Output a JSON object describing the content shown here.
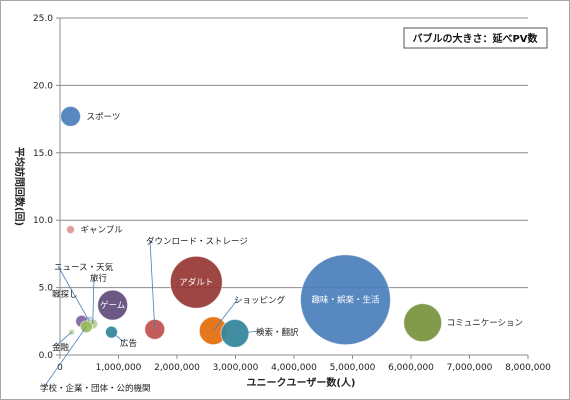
{
  "chart_data": {
    "type": "scatter",
    "bubble": true,
    "xlabel": "ユニークユーザー数(人)",
    "ylabel": "平均訪問回数(回)",
    "size_legend": "バブルの大きさ：延べPV数",
    "xlim": [
      0,
      8000000
    ],
    "ylim": [
      0,
      25
    ],
    "x_ticks": [
      "0",
      "1,000,000",
      "2,000,000",
      "3,000,000",
      "4,000,000",
      "5,000,000",
      "6,000,000",
      "7,000,000",
      "8,000,000"
    ],
    "y_ticks": [
      "0.0",
      "5.0",
      "10.0",
      "15.0",
      "20.0",
      "25.0"
    ],
    "grid": "horizontal",
    "points": [
      {
        "label": "スポーツ",
        "x": 180000,
        "y": 17.7,
        "r": 10,
        "color": "#4a7ebb"
      },
      {
        "label": "ギャンブル",
        "x": 180000,
        "y": 9.3,
        "r": 4,
        "color": "#d99694"
      },
      {
        "label": "ニュース・天気",
        "x": 500000,
        "y": 2.5,
        "r": 5,
        "color": "#b3c6e7"
      },
      {
        "label": "旅行",
        "x": 560000,
        "y": 2.3,
        "r": 5,
        "color": "#b9cd96"
      },
      {
        "label": "職探し",
        "x": 370000,
        "y": 2.5,
        "r": 6,
        "color": "#8064a2"
      },
      {
        "label": "金融",
        "x": 200000,
        "y": 1.7,
        "r": 3,
        "color": "#c3d69b"
      },
      {
        "label": "学校・企業・団体・公的機関",
        "x": 450000,
        "y": 2.1,
        "r": 6,
        "color": "#9bbb59"
      },
      {
        "label": "ゲーム",
        "x": 900000,
        "y": 3.7,
        "r": 15,
        "color": "#604a7b"
      },
      {
        "label": "広告",
        "x": 880000,
        "y": 1.7,
        "r": 6,
        "color": "#31859c"
      },
      {
        "label": "ダウンロード・ストレージ",
        "x": 1620000,
        "y": 1.9,
        "r": 10,
        "color": "#c0504d"
      },
      {
        "label": "アダルト",
        "x": 2330000,
        "y": 5.4,
        "r": 26,
        "color": "#953735"
      },
      {
        "label": "ショッピング",
        "x": 2620000,
        "y": 1.8,
        "r": 14,
        "color": "#e46c0a"
      },
      {
        "label": "検索・翻訳",
        "x": 2990000,
        "y": 1.6,
        "r": 14,
        "color": "#31859c"
      },
      {
        "label": "趣味・娯楽・生活",
        "x": 4880000,
        "y": 4.1,
        "r": 45,
        "color": "#4a7ebb"
      },
      {
        "label": "コミュニケーション",
        "x": 6200000,
        "y": 2.4,
        "r": 19,
        "color": "#77933c"
      }
    ]
  }
}
